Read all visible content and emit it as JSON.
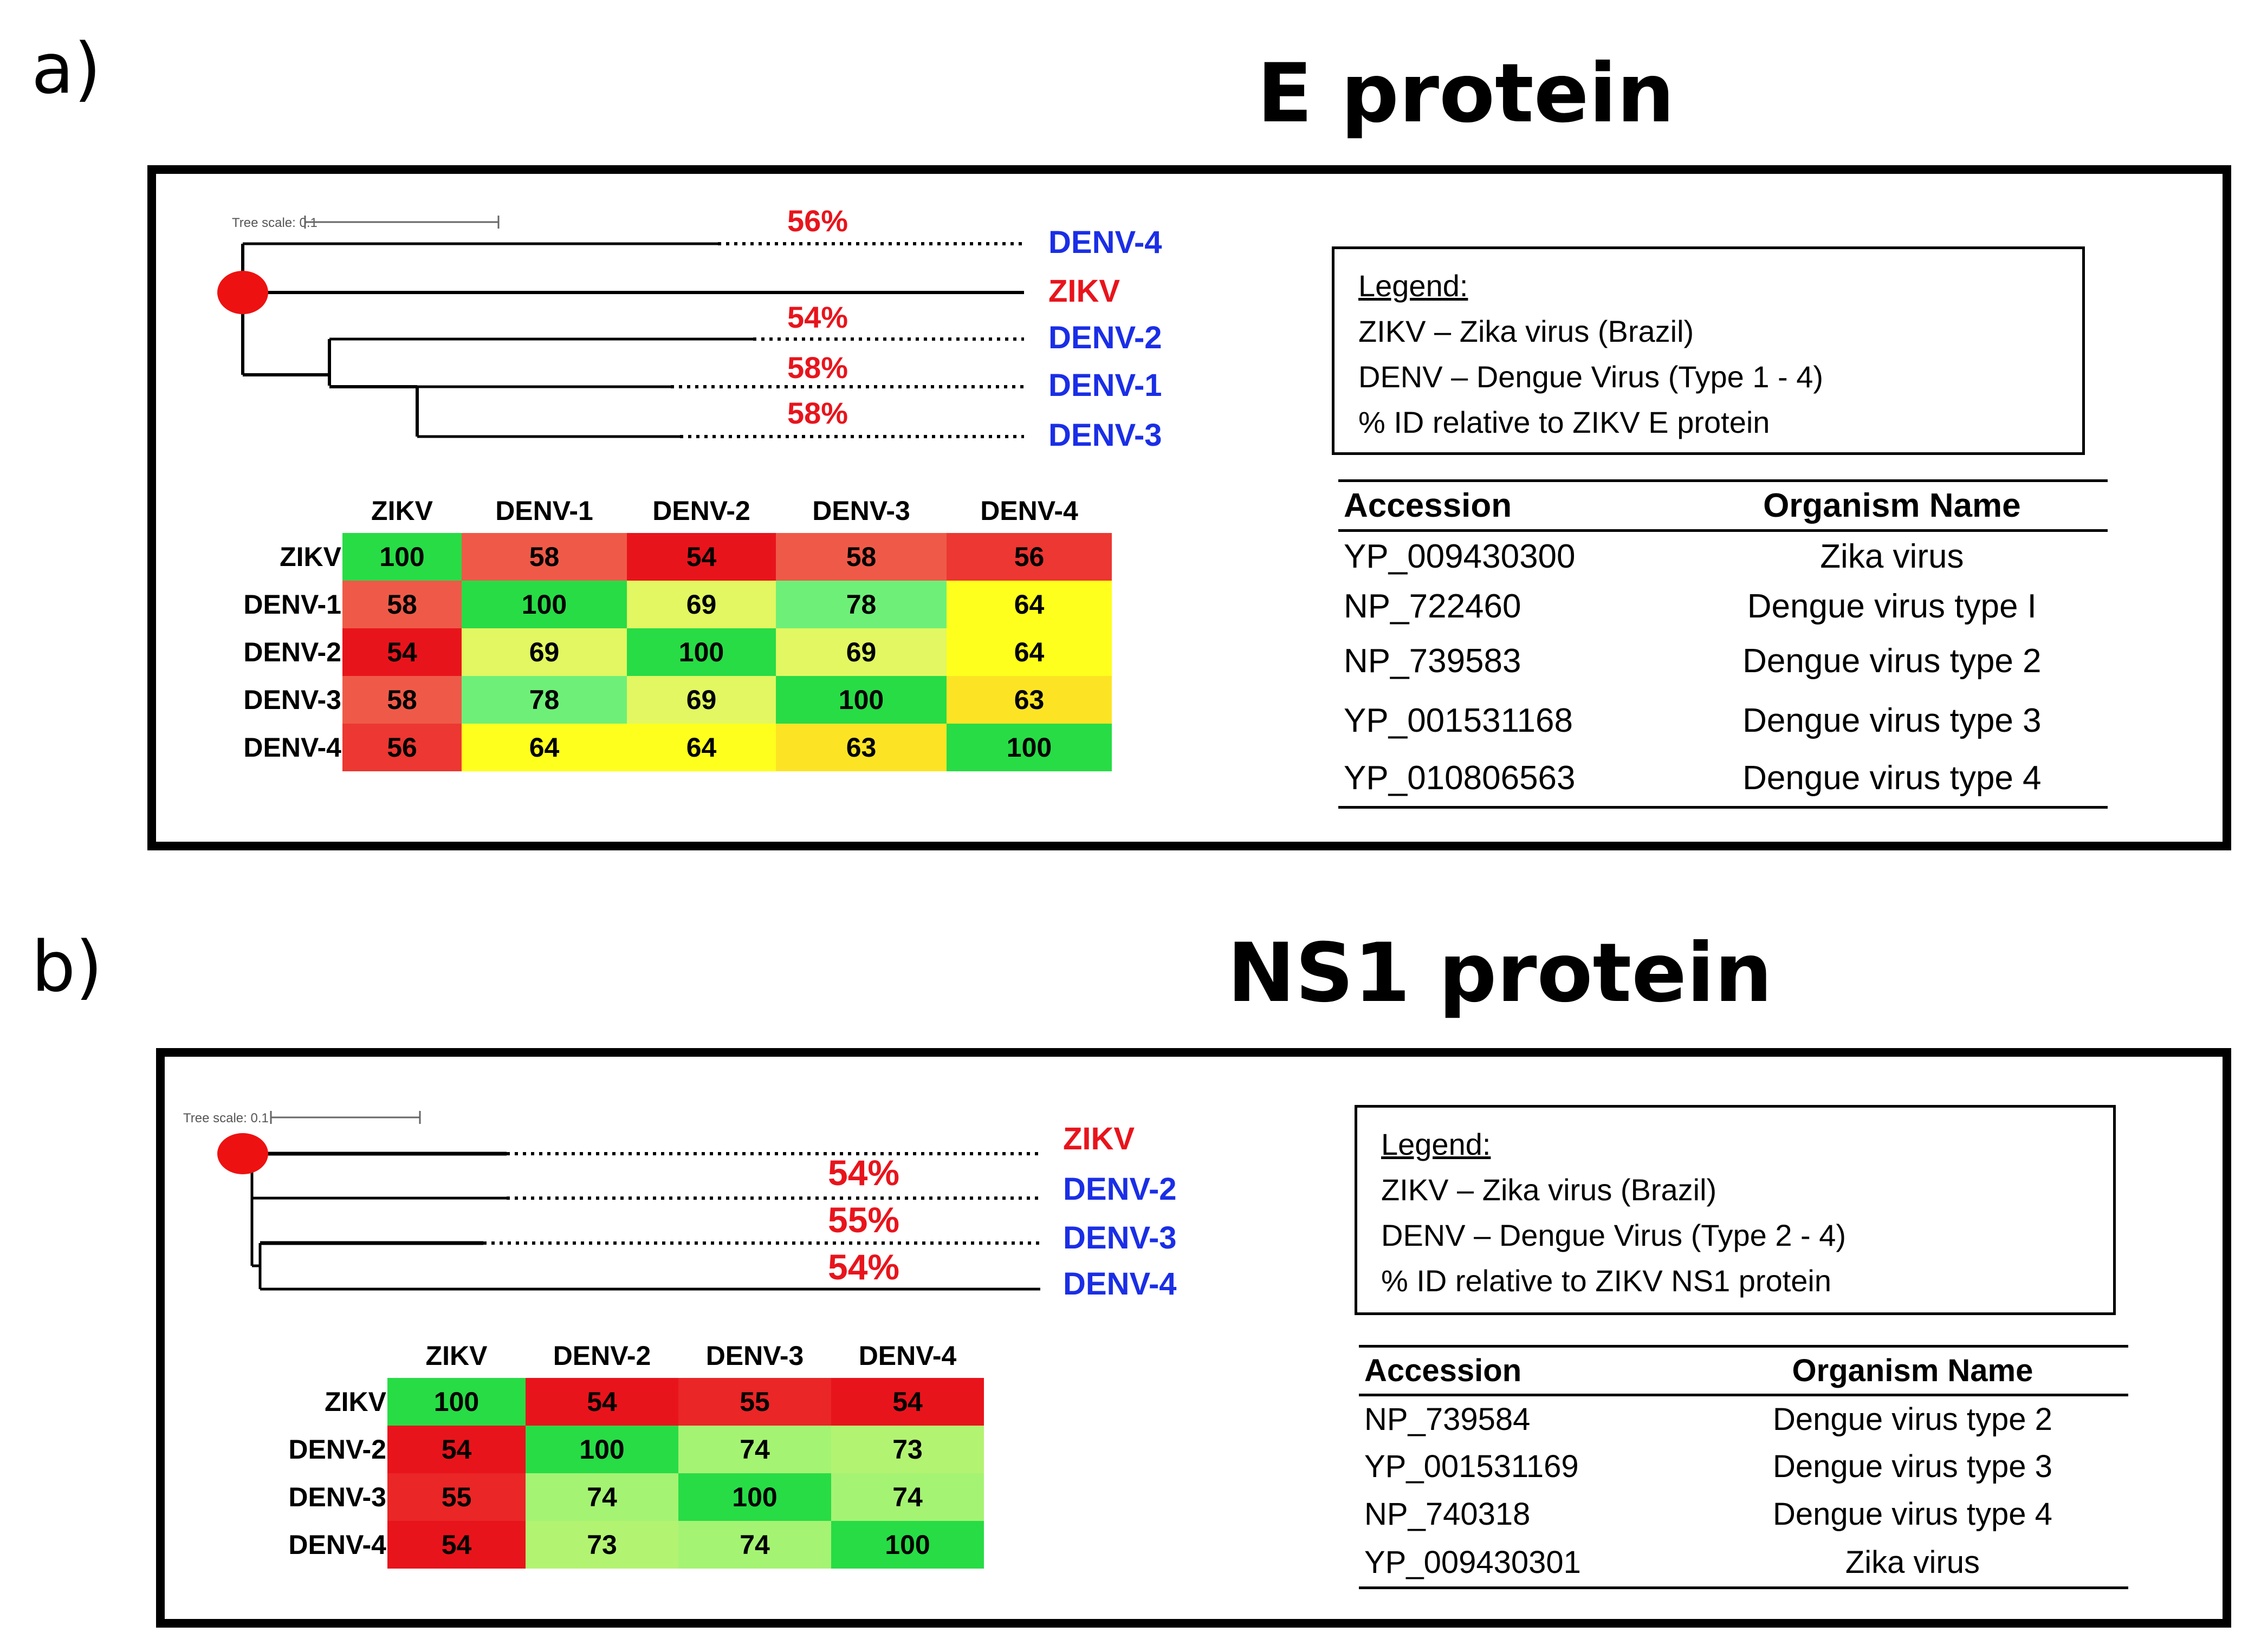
{
  "panels": [
    {
      "letter": "a)",
      "title": "E protein",
      "tree": {
        "scale_label": "Tree scale: 0.1",
        "leaves": [
          {
            "name": "DENV-4",
            "color": "#1a2ee6"
          },
          {
            "name": "ZIKV",
            "color": "#e8141c"
          },
          {
            "name": "DENV-2",
            "color": "#1a2ee6"
          },
          {
            "name": "DENV-1",
            "color": "#1a2ee6"
          },
          {
            "name": "DENV-3",
            "color": "#1a2ee6"
          }
        ],
        "identity_labels": [
          "56%",
          "54%",
          "58%",
          "58%"
        ]
      },
      "heatmap": {
        "labels": [
          "ZIKV",
          "DENV-1",
          "DENV-2",
          "DENV-3",
          "DENV-4"
        ],
        "values": [
          [
            100,
            58,
            54,
            58,
            56
          ],
          [
            58,
            100,
            69,
            78,
            64
          ],
          [
            54,
            69,
            100,
            69,
            64
          ],
          [
            58,
            78,
            69,
            100,
            63
          ],
          [
            56,
            64,
            64,
            63,
            100
          ]
        ]
      },
      "legend": {
        "title": "Legend:",
        "lines": [
          "ZIKV – Zika virus (Brazil)",
          "DENV – Dengue Virus (Type 1 - 4)",
          "% ID relative to ZIKV E protein"
        ]
      },
      "accession_table": {
        "headers": [
          "Accession",
          "Organism Name"
        ],
        "rows": [
          [
            "YP_009430300",
            "Zika virus"
          ],
          [
            "NP_722460",
            "Dengue virus type I"
          ],
          [
            "NP_739583",
            "Dengue virus type 2"
          ],
          [
            "YP_001531168",
            "Dengue virus type 3"
          ],
          [
            "YP_010806563",
            "Dengue virus type 4"
          ]
        ]
      }
    },
    {
      "letter": "b)",
      "title": "NS1 protein",
      "tree": {
        "scale_label": "Tree scale: 0.1",
        "leaves": [
          {
            "name": "ZIKV",
            "color": "#e8141c"
          },
          {
            "name": "DENV-2",
            "color": "#1a2ee6"
          },
          {
            "name": "DENV-3",
            "color": "#1a2ee6"
          },
          {
            "name": "DENV-4",
            "color": "#1a2ee6"
          }
        ],
        "identity_labels": [
          "54%",
          "55%",
          "54%"
        ]
      },
      "heatmap": {
        "labels": [
          "ZIKV",
          "DENV-2",
          "DENV-3",
          "DENV-4"
        ],
        "values": [
          [
            100,
            54,
            55,
            54
          ],
          [
            54,
            100,
            74,
            73
          ],
          [
            55,
            74,
            100,
            74
          ],
          [
            54,
            73,
            74,
            100
          ]
        ]
      },
      "legend": {
        "title": "Legend:",
        "lines": [
          "ZIKV – Zika virus (Brazil)",
          "DENV – Dengue Virus (Type 2 - 4)",
          "% ID relative to ZIKV NS1 protein"
        ]
      },
      "accession_table": {
        "headers": [
          "Accession",
          "Organism Name"
        ],
        "rows": [
          [
            "NP_739584",
            "Dengue virus type 2"
          ],
          [
            "YP_001531169",
            "Dengue virus type 3"
          ],
          [
            "NP_740318",
            "Dengue virus type 4"
          ],
          [
            "YP_009430301",
            "Zika virus"
          ]
        ]
      }
    }
  ],
  "colors": {
    "zika": "#e8141c",
    "dengue": "#1a2ee6",
    "root_node": "#ee1111"
  }
}
